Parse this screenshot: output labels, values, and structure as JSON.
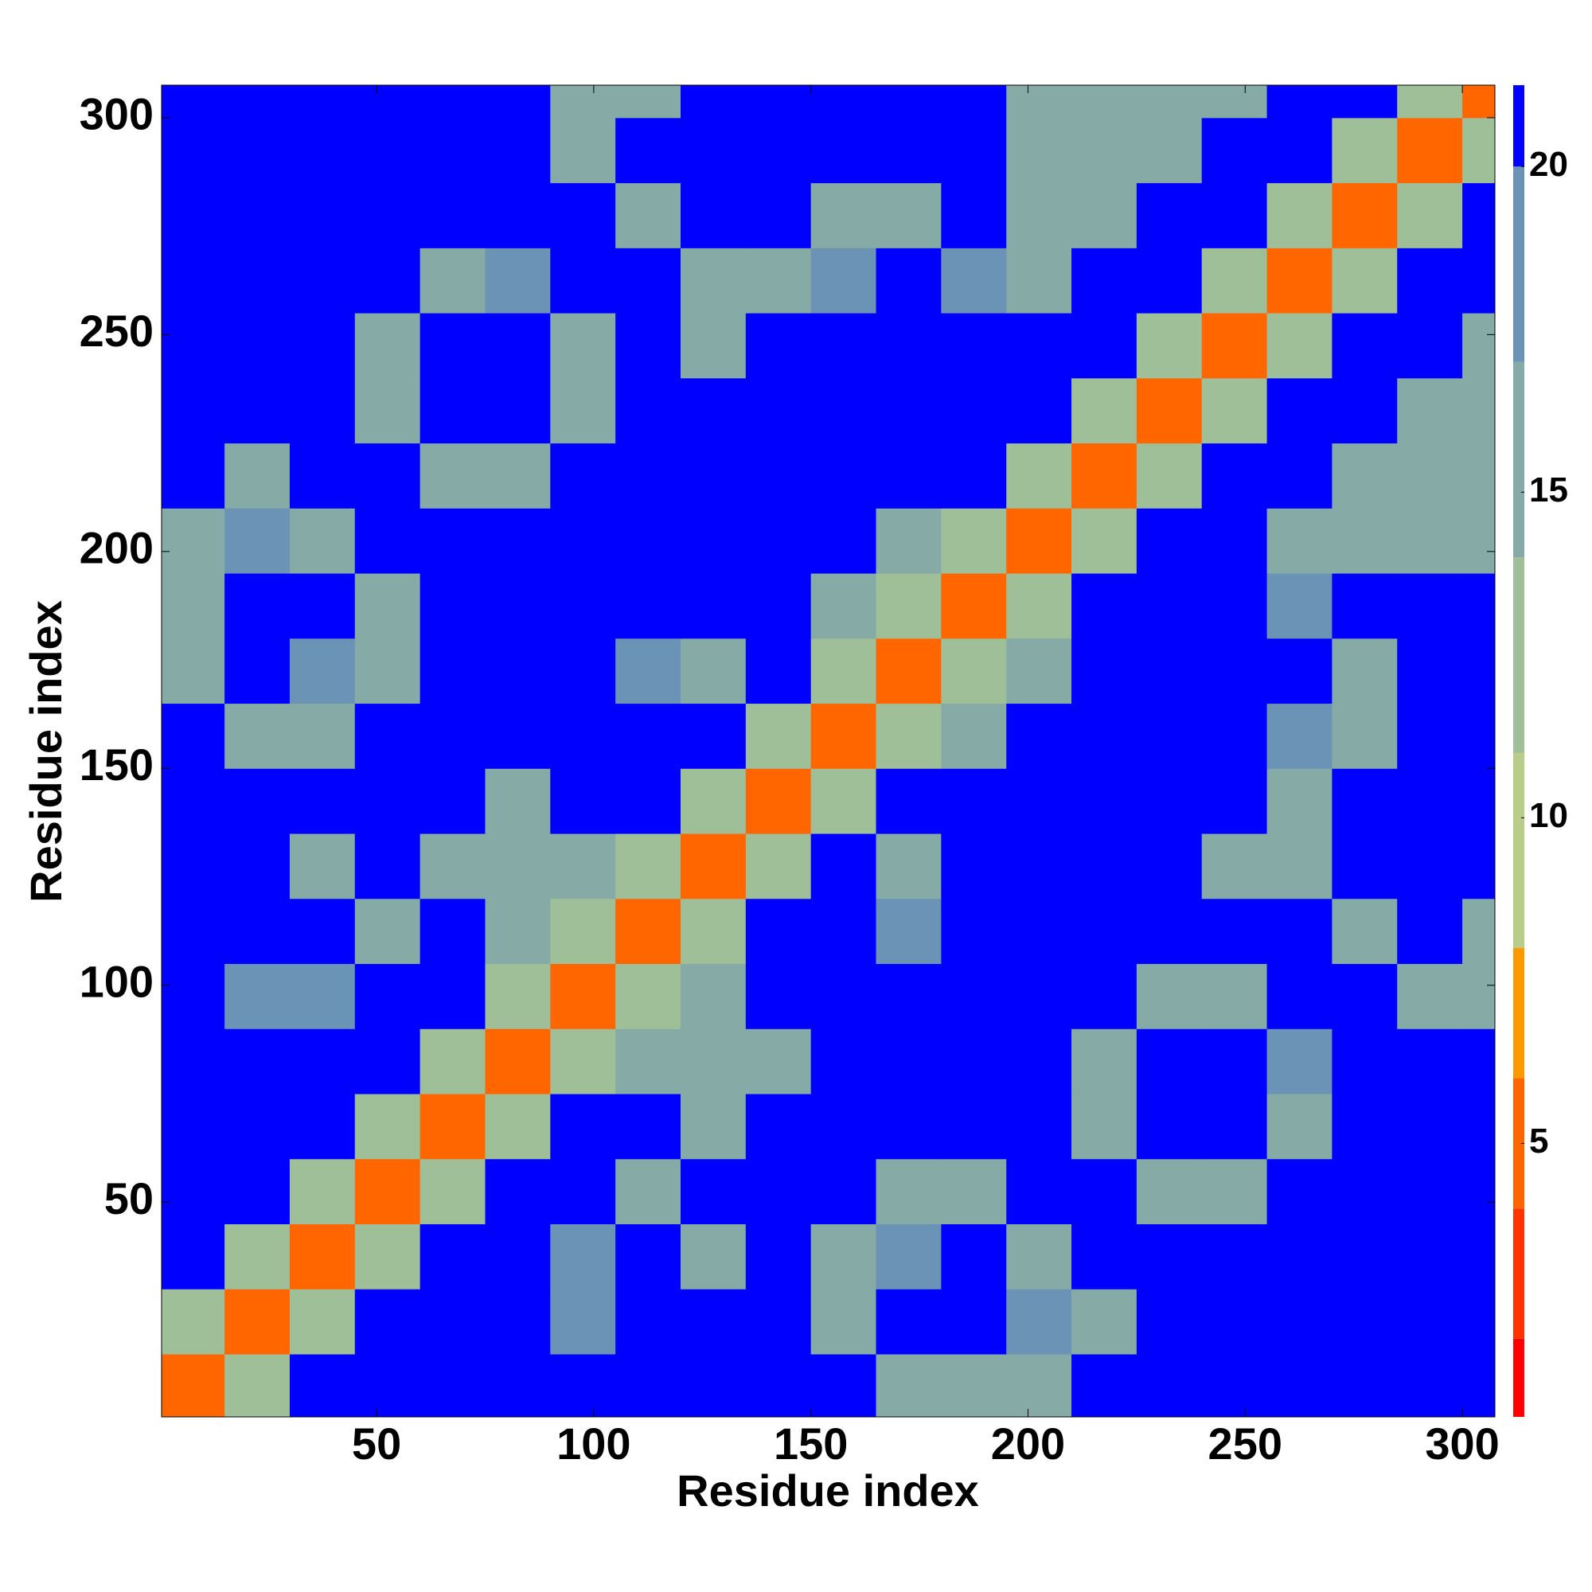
{
  "chart_data": {
    "type": "heatmap",
    "xlabel": "Residue index",
    "ylabel": "Residue index",
    "x": [
      7.5,
      22.5,
      37.5,
      52.5,
      67.5,
      82.5,
      97.5,
      112.5,
      127.5,
      142.5,
      157.5,
      172.5,
      187.5,
      202.5,
      217.5,
      232.5,
      247.5,
      262.5,
      277.5,
      292.5,
      307.5
    ],
    "y": [
      7.5,
      22.5,
      37.5,
      52.5,
      67.5,
      82.5,
      97.5,
      112.5,
      127.5,
      142.5,
      157.5,
      172.5,
      187.5,
      202.5,
      217.5,
      232.5,
      247.5,
      262.5,
      277.5,
      292.5,
      307.5
    ],
    "z": [
      [
        4,
        12,
        21,
        21,
        21,
        21,
        21,
        21,
        21,
        21,
        21,
        16,
        16,
        16,
        21,
        21,
        21,
        21,
        21,
        21,
        21
      ],
      [
        12,
        4,
        12,
        21,
        21,
        21,
        18,
        21,
        21,
        21,
        16,
        21,
        21,
        17,
        16,
        21,
        21,
        21,
        21,
        21,
        21
      ],
      [
        21,
        12,
        4,
        12,
        21,
        21,
        17,
        21,
        16,
        21,
        16,
        17,
        21,
        16,
        21,
        21,
        21,
        21,
        21,
        21,
        21
      ],
      [
        21,
        21,
        12,
        4,
        12,
        21,
        21,
        16,
        21,
        21,
        21,
        16,
        16,
        21,
        21,
        16,
        16,
        21,
        21,
        21,
        21
      ],
      [
        21,
        21,
        21,
        12,
        4,
        12,
        21,
        21,
        16,
        21,
        21,
        21,
        21,
        21,
        16,
        21,
        21,
        16,
        21,
        21,
        21
      ],
      [
        21,
        21,
        21,
        21,
        12,
        4,
        12,
        15,
        15,
        16,
        21,
        21,
        21,
        21,
        16,
        21,
        21,
        17,
        21,
        21,
        21
      ],
      [
        21,
        18,
        17,
        21,
        21,
        12,
        4,
        12,
        15,
        21,
        21,
        21,
        21,
        21,
        21,
        16,
        16,
        21,
        21,
        16,
        16
      ],
      [
        21,
        21,
        21,
        16,
        21,
        15,
        12,
        4,
        12,
        21,
        21,
        17,
        21,
        21,
        21,
        21,
        21,
        21,
        16,
        21,
        16
      ],
      [
        21,
        21,
        16,
        21,
        16,
        15,
        15,
        12,
        4,
        12,
        21,
        16,
        21,
        21,
        21,
        21,
        16,
        16,
        21,
        21,
        21
      ],
      [
        21,
        21,
        21,
        21,
        21,
        16,
        21,
        21,
        12,
        4,
        12,
        21,
        21,
        21,
        21,
        21,
        21,
        16,
        21,
        21,
        21
      ],
      [
        21,
        16,
        16,
        21,
        21,
        21,
        21,
        21,
        21,
        12,
        4,
        12,
        16,
        21,
        21,
        21,
        21,
        17,
        16,
        21,
        21
      ],
      [
        16,
        21,
        17,
        16,
        21,
        21,
        21,
        17,
        16,
        21,
        12,
        4,
        12,
        16,
        21,
        21,
        21,
        21,
        16,
        21,
        21
      ],
      [
        16,
        21,
        21,
        16,
        21,
        21,
        21,
        21,
        21,
        21,
        16,
        12,
        4,
        12,
        21,
        21,
        21,
        17,
        21,
        21,
        21
      ],
      [
        16,
        17,
        16,
        21,
        21,
        21,
        21,
        21,
        21,
        21,
        21,
        16,
        12,
        4,
        12,
        21,
        21,
        16,
        16,
        16,
        16
      ],
      [
        21,
        16,
        21,
        21,
        16,
        16,
        21,
        21,
        21,
        21,
        21,
        21,
        21,
        12,
        4,
        12,
        21,
        21,
        16,
        16,
        16
      ],
      [
        21,
        21,
        21,
        16,
        21,
        21,
        16,
        21,
        21,
        21,
        21,
        21,
        21,
        21,
        12,
        4,
        12,
        21,
        21,
        16,
        16
      ],
      [
        21,
        21,
        21,
        16,
        21,
        21,
        16,
        21,
        16,
        21,
        21,
        21,
        21,
        21,
        21,
        12,
        4,
        12,
        21,
        21,
        16
      ],
      [
        21,
        21,
        21,
        21,
        16,
        17,
        21,
        21,
        16,
        16,
        17,
        21,
        17,
        16,
        21,
        21,
        12,
        4,
        12,
        21,
        21
      ],
      [
        21,
        21,
        21,
        21,
        21,
        21,
        21,
        16,
        21,
        21,
        16,
        16,
        21,
        16,
        16,
        21,
        21,
        12,
        4,
        12,
        21
      ],
      [
        21,
        21,
        21,
        21,
        21,
        21,
        16,
        21,
        21,
        21,
        21,
        21,
        21,
        16,
        16,
        16,
        21,
        21,
        12,
        4,
        12
      ],
      [
        21,
        21,
        21,
        21,
        21,
        21,
        16,
        16,
        21,
        21,
        21,
        21,
        21,
        16,
        16,
        16,
        16,
        21,
        21,
        12,
        4
      ]
    ],
    "xlim": [
      0.5,
      307.5
    ],
    "ylim": [
      0.5,
      307.5
    ],
    "xticks": [
      50,
      100,
      150,
      200,
      250,
      300
    ],
    "yticks": [
      50,
      100,
      150,
      200,
      250,
      300
    ],
    "zlim": [
      0.8,
      21.25
    ],
    "zticks": [
      5,
      10,
      15,
      20
    ],
    "colorscale": [
      {
        "value": 0,
        "color": "#ff0000"
      },
      {
        "value": 2,
        "color": "#ff3300"
      },
      {
        "value": 4,
        "color": "#ff6600"
      },
      {
        "value": 6,
        "color": "#ff9900"
      },
      {
        "value": 8,
        "color": "#b9cc8a"
      },
      {
        "value": 11,
        "color": "#9fbf98"
      },
      {
        "value": 14,
        "color": "#86aaa6"
      },
      {
        "value": 17,
        "color": "#6b93b6"
      },
      {
        "value": 20,
        "color": "#0000ff"
      }
    ]
  }
}
